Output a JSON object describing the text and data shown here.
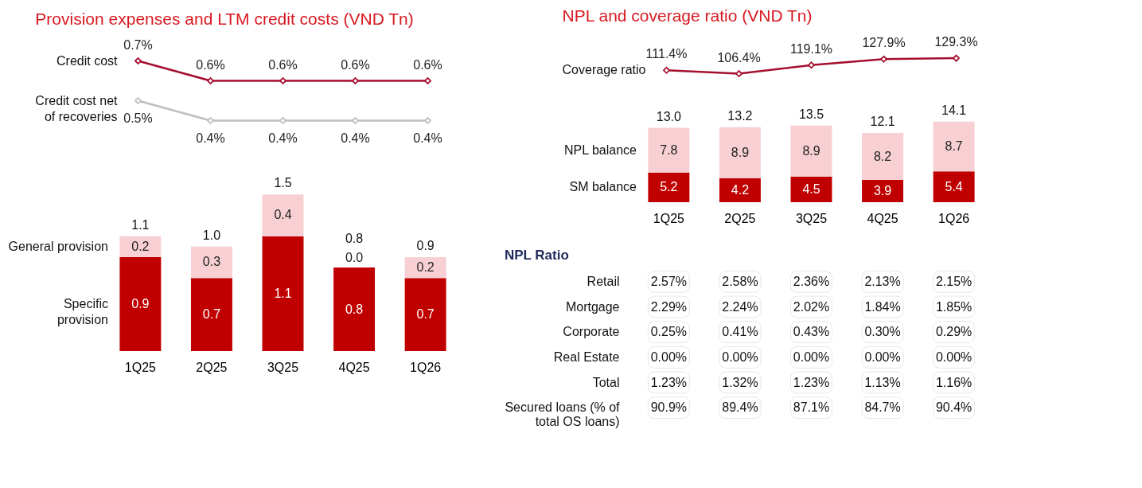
{
  "chart_data": [
    {
      "type": "line",
      "title": "Provision expenses and LTM credit costs (VND Tn)",
      "categories": [
        null,
        null,
        null,
        null,
        null
      ],
      "tick_labels": false,
      "marker": "diamond",
      "series": [
        {
          "name": "Credit cost",
          "color": "#a50f2d",
          "values": [
            0.7,
            0.6,
            0.6,
            0.6,
            0.6
          ],
          "value_labels": [
            "0.7%",
            "0.6%",
            "0.6%",
            "0.6%",
            "0.6%"
          ]
        },
        {
          "name": "Credit cost net of recoveries",
          "color": "#bfbfbf",
          "values": [
            0.5,
            0.4,
            0.4,
            0.4,
            0.4
          ],
          "value_labels": [
            "0.5%",
            "0.4%",
            "0.4%",
            "0.4%",
            "0.4%"
          ]
        }
      ]
    },
    {
      "type": "bar",
      "stacked": true,
      "categories": [
        "1Q25",
        "2Q25",
        "3Q25",
        "4Q25",
        "1Q26"
      ],
      "tick_labels": "x",
      "series": [
        {
          "name": "Specific provision",
          "color": "#c00000",
          "values": [
            0.9,
            0.7,
            1.1,
            0.8,
            0.7
          ],
          "value_labels": [
            "0.9",
            "0.7",
            "1.1",
            "0.8",
            "0.7"
          ]
        },
        {
          "name": "General provision",
          "color": "#f8d0d3",
          "values": [
            0.2,
            0.3,
            0.4,
            0.0,
            0.2
          ],
          "value_labels": [
            "0.2",
            "0.3",
            "0.4",
            "0.0",
            "0.2"
          ]
        }
      ],
      "totals": [
        "1.1",
        "1.0",
        "1.5",
        "0.8",
        "0.9"
      ]
    },
    {
      "type": "line",
      "title": "NPL and coverage ratio (VND Tn)",
      "categories": [
        null,
        null,
        null,
        null,
        null
      ],
      "tick_labels": false,
      "marker": "diamond",
      "series": [
        {
          "name": "Coverage ratio",
          "color": "#a50f2d",
          "values": [
            111.4,
            106.4,
            119.1,
            127.9,
            129.3
          ],
          "value_labels": [
            "111.4%",
            "106.4%",
            "119.1%",
            "127.9%",
            "129.3%"
          ]
        }
      ]
    },
    {
      "type": "bar",
      "stacked": true,
      "categories": [
        "1Q25",
        "2Q25",
        "3Q25",
        "4Q25",
        "1Q26"
      ],
      "tick_labels": "x",
      "series": [
        {
          "name": "SM balance",
          "color": "#c00000",
          "values": [
            5.2,
            4.2,
            4.5,
            3.9,
            5.4
          ],
          "value_labels": [
            "5.2",
            "4.2",
            "4.5",
            "3.9",
            "5.4"
          ]
        },
        {
          "name": "NPL balance",
          "color": "#f8d0d3",
          "values": [
            7.8,
            8.9,
            8.9,
            8.2,
            8.7
          ],
          "value_labels": [
            "7.8",
            "8.9",
            "8.9",
            "8.2",
            "8.7"
          ]
        }
      ],
      "totals": [
        "13.0",
        "13.2",
        "13.5",
        "12.1",
        "14.1"
      ]
    },
    {
      "type": "other",
      "title": "NPL Ratio",
      "y_categories": [
        "Retail",
        "Mortgage",
        "Corporate",
        "Real Estate",
        "Total",
        "Secured loans (% of total OS loans)"
      ],
      "cell_labels": [
        [
          "2.57%",
          "2.58%",
          "2.36%",
          "2.13%",
          "2.15%"
        ],
        [
          "2.29%",
          "2.24%",
          "2.02%",
          "1.84%",
          "1.85%"
        ],
        [
          "0.25%",
          "0.41%",
          "0.43%",
          "0.30%",
          "0.29%"
        ],
        [
          "0.00%",
          "0.00%",
          "0.00%",
          "0.00%",
          "0.00%"
        ],
        [
          "1.23%",
          "1.32%",
          "1.23%",
          "1.13%",
          "1.16%"
        ],
        [
          "90.9%",
          "89.4%",
          "87.1%",
          "84.7%",
          "90.4%"
        ]
      ]
    }
  ]
}
